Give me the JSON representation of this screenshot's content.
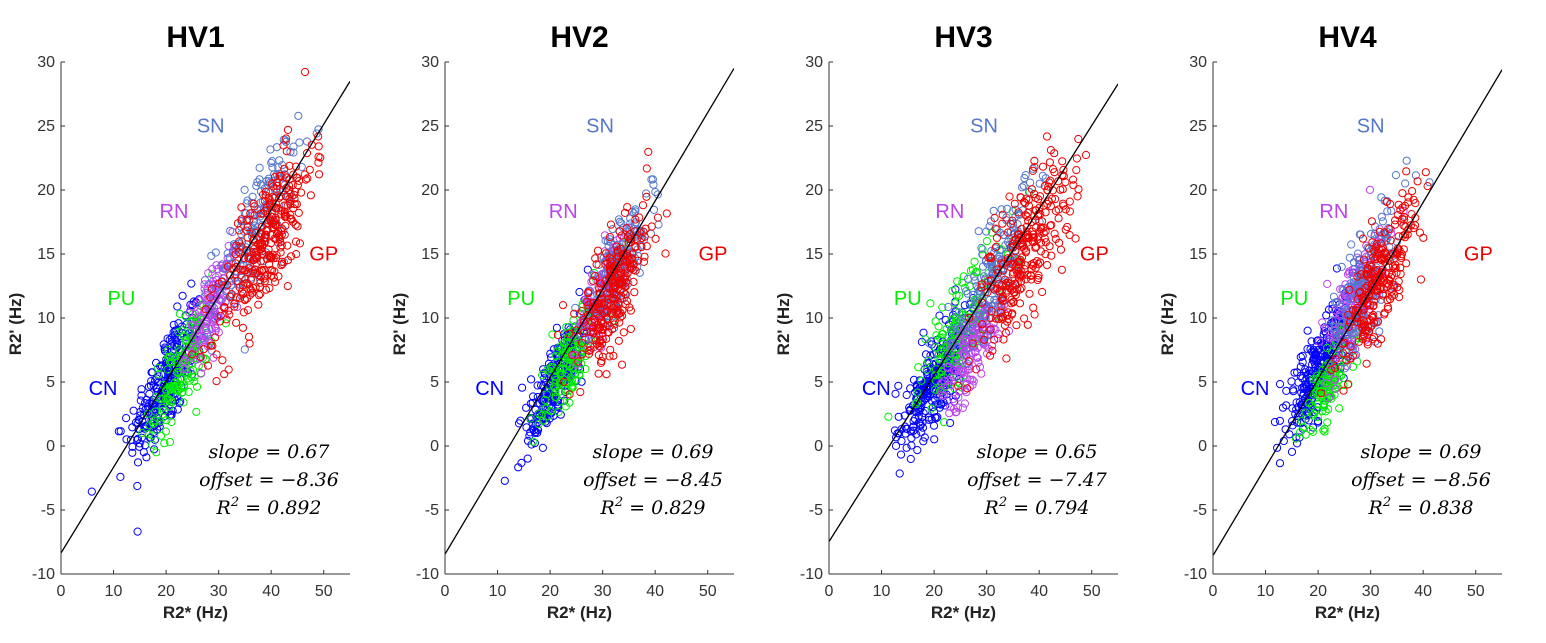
{
  "figure": {
    "background": "#ffffff"
  },
  "chart_data": [
    {
      "type": "scatter",
      "title": "HV1",
      "xlabel": "R2* (Hz)",
      "ylabel": "R2' (Hz)",
      "xlim": [
        0,
        55
      ],
      "ylim": [
        -10,
        30
      ],
      "xticks": [
        "0",
        "10",
        "20",
        "30",
        "40",
        "50"
      ],
      "yticks": [
        "-10",
        "-5",
        "0",
        "5",
        "10",
        "15",
        "20",
        "25",
        "30"
      ],
      "regions": [
        {
          "name": "CN",
          "color": "#0000ff",
          "label_at": [
            8.0,
            4.0
          ],
          "center": [
            20,
            5
          ],
          "spread": [
            3.5,
            3.2
          ],
          "count": 260
        },
        {
          "name": "PU",
          "color": "#00ee00",
          "label_at": [
            11.5,
            11.0
          ],
          "center": [
            23,
            6
          ],
          "spread": [
            3.0,
            3.0
          ],
          "count": 150
        },
        {
          "name": "RN",
          "color": "#bb44ee",
          "label_at": [
            21.5,
            17.8
          ],
          "center": [
            29,
            11
          ],
          "spread": [
            2.5,
            2.5
          ],
          "count": 140
        },
        {
          "name": "SN",
          "color": "#5577cc",
          "label_at": [
            28.5,
            24.5
          ],
          "center": [
            37,
            17
          ],
          "spread": [
            4.0,
            3.5
          ],
          "count": 170
        },
        {
          "name": "GP",
          "color": "#ee0000",
          "label_at": [
            50.0,
            14.5
          ],
          "center": [
            39,
            16
          ],
          "spread": [
            4.5,
            4.0
          ],
          "count": 300
        }
      ],
      "fit": {
        "slope": 0.67,
        "offset": -8.36,
        "r2": 0.892
      },
      "annotations": {
        "slope": "slope = 0.67",
        "offset": "offset = −8.36",
        "r2_label": "R",
        "r2_exp": "2",
        "r2_value": " = 0.892"
      }
    },
    {
      "type": "scatter",
      "title": "HV2",
      "xlabel": "R2* (Hz)",
      "ylabel": "R2' (Hz)",
      "xlim": [
        0,
        55
      ],
      "ylim": [
        -10,
        30
      ],
      "xticks": [
        "0",
        "10",
        "20",
        "30",
        "40",
        "50"
      ],
      "yticks": [
        "-10",
        "-5",
        "0",
        "5",
        "10",
        "15",
        "20",
        "25",
        "30"
      ],
      "regions": [
        {
          "name": "CN",
          "color": "#0000ff",
          "label_at": [
            8.5,
            4.0
          ],
          "center": [
            21,
            5
          ],
          "spread": [
            3.0,
            2.5
          ],
          "count": 250
        },
        {
          "name": "PU",
          "color": "#00ee00",
          "label_at": [
            14.5,
            11.0
          ],
          "center": [
            24,
            7
          ],
          "spread": [
            3.0,
            2.5
          ],
          "count": 150
        },
        {
          "name": "RN",
          "color": "#bb44ee",
          "label_at": [
            22.5,
            17.8
          ],
          "center": [
            30,
            12
          ],
          "spread": [
            2.5,
            2.5
          ],
          "count": 130
        },
        {
          "name": "SN",
          "color": "#5577cc",
          "label_at": [
            29.5,
            24.5
          ],
          "center": [
            33,
            14
          ],
          "spread": [
            3.0,
            3.0
          ],
          "count": 160
        },
        {
          "name": "GP",
          "color": "#ee0000",
          "label_at": [
            51.0,
            14.5
          ],
          "center": [
            32,
            12
          ],
          "spread": [
            3.5,
            3.5
          ],
          "count": 260
        }
      ],
      "fit": {
        "slope": 0.69,
        "offset": -8.45,
        "r2": 0.829
      },
      "annotations": {
        "slope": "slope = 0.69",
        "offset": "offset = −8.45",
        "r2_label": "R",
        "r2_exp": "2",
        "r2_value": " = 0.829"
      }
    },
    {
      "type": "scatter",
      "title": "HV3",
      "xlabel": "R2* (Hz)",
      "ylabel": "R2' (Hz)",
      "xlim": [
        0,
        55
      ],
      "ylim": [
        -10,
        30
      ],
      "xticks": [
        "0",
        "10",
        "20",
        "30",
        "40",
        "50"
      ],
      "yticks": [
        "-10",
        "-5",
        "0",
        "5",
        "10",
        "15",
        "20",
        "25",
        "30"
      ],
      "regions": [
        {
          "name": "CN",
          "color": "#0000ff",
          "label_at": [
            9.0,
            4.0
          ],
          "center": [
            20,
            5
          ],
          "spread": [
            3.5,
            3.0
          ],
          "count": 280
        },
        {
          "name": "PU",
          "color": "#00ee00",
          "label_at": [
            15.0,
            11.0
          ],
          "center": [
            25,
            9
          ],
          "spread": [
            4.0,
            3.5
          ],
          "count": 160
        },
        {
          "name": "RN",
          "color": "#bb44ee",
          "label_at": [
            23.0,
            17.8
          ],
          "center": [
            28,
            8
          ],
          "spread": [
            3.0,
            2.5
          ],
          "count": 150
        },
        {
          "name": "SN",
          "color": "#5577cc",
          "label_at": [
            29.5,
            24.5
          ],
          "center": [
            31,
            13
          ],
          "spread": [
            4.0,
            3.5
          ],
          "count": 170
        },
        {
          "name": "GP",
          "color": "#ee0000",
          "label_at": [
            50.5,
            14.5
          ],
          "center": [
            37,
            15
          ],
          "spread": [
            4.5,
            4.0
          ],
          "count": 280
        }
      ],
      "fit": {
        "slope": 0.65,
        "offset": -7.47,
        "r2": 0.794
      },
      "annotations": {
        "slope": "slope = 0.65",
        "offset": "offset = −7.47",
        "r2_label": "R",
        "r2_exp": "2",
        "r2_value": " = 0.794"
      }
    },
    {
      "type": "scatter",
      "title": "HV4",
      "xlabel": "R2* (Hz)",
      "ylabel": "R2' (Hz)",
      "xlim": [
        0,
        55
      ],
      "ylim": [
        -10,
        30
      ],
      "xticks": [
        "0",
        "10",
        "20",
        "30",
        "40",
        "50"
      ],
      "yticks": [
        "-10",
        "-5",
        "0",
        "5",
        "10",
        "15",
        "20",
        "25",
        "30"
      ],
      "regions": [
        {
          "name": "CN",
          "color": "#0000ff",
          "label_at": [
            8.0,
            4.0
          ],
          "center": [
            20,
            6
          ],
          "spread": [
            3.0,
            3.0
          ],
          "count": 270
        },
        {
          "name": "PU",
          "color": "#00ee00",
          "label_at": [
            15.5,
            11.0
          ],
          "center": [
            22,
            5
          ],
          "spread": [
            2.5,
            2.5
          ],
          "count": 120
        },
        {
          "name": "RN",
          "color": "#bb44ee",
          "label_at": [
            23.0,
            17.8
          ],
          "center": [
            27,
            11
          ],
          "spread": [
            3.0,
            3.0
          ],
          "count": 170
        },
        {
          "name": "SN",
          "color": "#5577cc",
          "label_at": [
            30.0,
            24.5
          ],
          "center": [
            29,
            13
          ],
          "spread": [
            3.5,
            3.5
          ],
          "count": 170
        },
        {
          "name": "GP",
          "color": "#ee0000",
          "label_at": [
            50.5,
            14.5
          ],
          "center": [
            32,
            13
          ],
          "spread": [
            3.5,
            3.5
          ],
          "count": 240
        }
      ],
      "fit": {
        "slope": 0.69,
        "offset": -8.56,
        "r2": 0.838
      },
      "annotations": {
        "slope": "slope = 0.69",
        "offset": "offset = −8.56",
        "r2_label": "R",
        "r2_exp": "2",
        "r2_value": " = 0.838"
      }
    }
  ]
}
